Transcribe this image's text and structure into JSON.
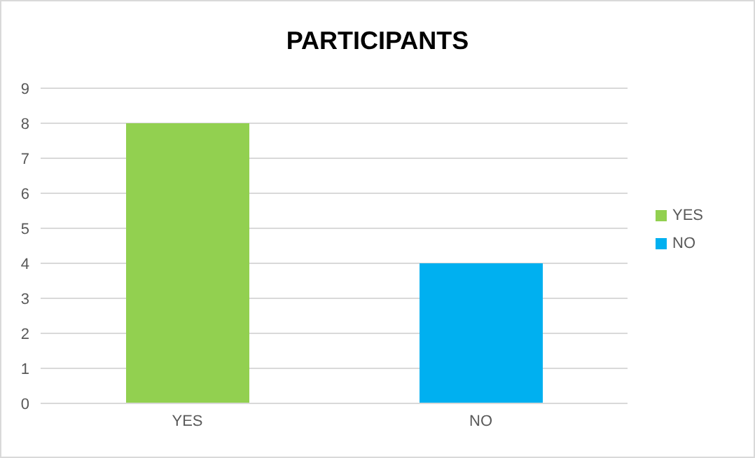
{
  "chart_data": {
    "type": "bar",
    "title": "PARTICIPANTS",
    "categories": [
      "YES",
      "NO"
    ],
    "series": [
      {
        "name": "YES",
        "color": "#92d050",
        "values": [
          8,
          null
        ]
      },
      {
        "name": "NO",
        "color": "#00b0f0",
        "values": [
          null,
          4
        ]
      }
    ],
    "stacked": true,
    "ylim": [
      0,
      9
    ],
    "yticks": [
      0,
      1,
      2,
      3,
      4,
      5,
      6,
      7,
      8,
      9
    ],
    "grid": "y",
    "legend": "right"
  }
}
